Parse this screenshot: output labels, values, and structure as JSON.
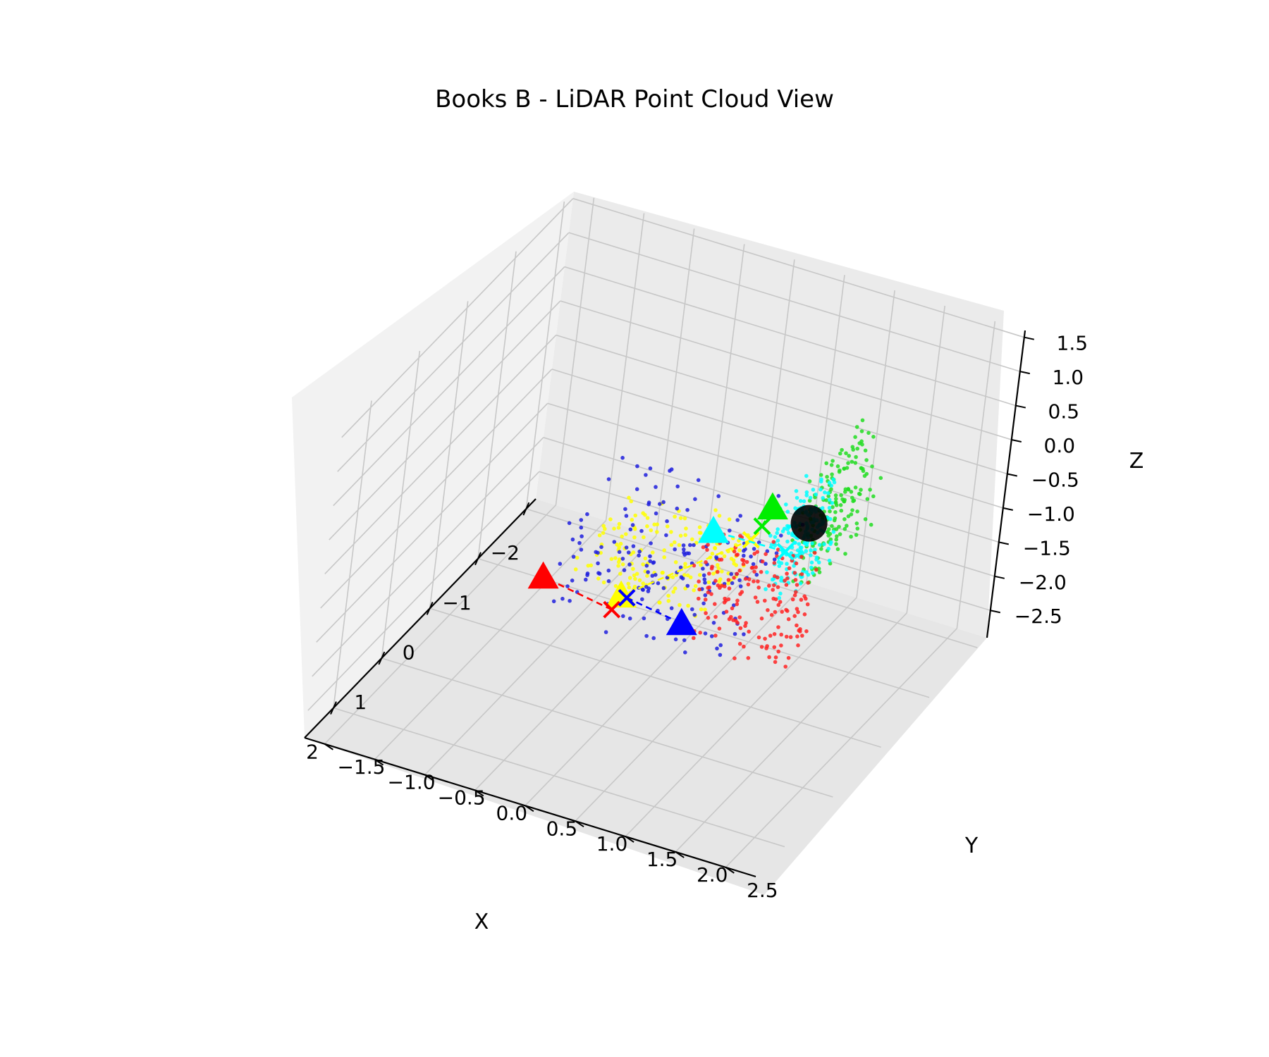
{
  "chart_data": {
    "type": "scatter",
    "title": "Books B - LiDAR Point Cloud View",
    "xlabel": "X",
    "ylabel": "Y",
    "zlabel": "Z",
    "xlim": [
      -2.2,
      2.6
    ],
    "ylim": [
      -1.7,
      2.8
    ],
    "zlim": [
      -2.9,
      1.6
    ],
    "x_ticks": [
      "−2",
      "−1",
      "0",
      "1",
      "2"
    ],
    "y_ticks": [
      "−1.5",
      "−1.0",
      "−0.5",
      "0.0",
      "0.5",
      "1.0",
      "1.5",
      "2.0",
      "2.5"
    ],
    "z_ticks": [
      "−2.5",
      "−2.0",
      "−1.5",
      "−1.0",
      "−0.5",
      "0.0",
      "0.5",
      "1.0",
      "1.5"
    ],
    "grid": true,
    "point_clouds": [
      {
        "color": "#22dd22",
        "x_range": [
          -1.5,
          -0.2
        ],
        "y_range": [
          1.6,
          1.9
        ],
        "z_range": [
          -1.2,
          0.3
        ]
      },
      {
        "color": "#00ffff",
        "x_range": [
          -0.6,
          0.4
        ],
        "y_range": [
          1.6,
          1.9
        ],
        "z_range": [
          -1.0,
          0.3
        ]
      },
      {
        "color": "#ffff00",
        "x_range": [
          -1.1,
          0.3
        ],
        "y_range": [
          -0.3,
          1.0
        ],
        "z_range": [
          -1.8,
          -1.2
        ]
      },
      {
        "color": "#1f1fdd",
        "x_range": [
          -0.6,
          1.1
        ],
        "y_range": [
          -0.2,
          1.6
        ],
        "z_range": [
          -1.6,
          -0.2
        ]
      },
      {
        "color": "#ff2222",
        "x_range": [
          0.5,
          1.1
        ],
        "y_range": [
          1.2,
          2.2
        ],
        "z_range": [
          -1.3,
          0.1
        ]
      }
    ],
    "center_marker": {
      "color": "#000000",
      "x": -0.6,
      "y": 1.6,
      "z": -0.6
    },
    "sensors": [
      {
        "color": "#ffff00",
        "from": [
          -1.0,
          0.9,
          -1.45
        ],
        "to": [
          -1.05,
          -0.3,
          -2.85
        ]
      },
      {
        "color": "#00ffff",
        "from": [
          0.5,
          1.85,
          -0.1
        ],
        "to": [
          1.9,
          1.7,
          1.15
        ]
      },
      {
        "color": "#ff0000",
        "from": [
          0.25,
          0.15,
          -1.9
        ],
        "to": [
          2.1,
          0.2,
          -0.05
        ]
      },
      {
        "color": "#0000ff",
        "from": [
          0.05,
          0.2,
          -1.85
        ],
        "to": [
          0.9,
          1.1,
          -1.2
        ]
      },
      {
        "color": "#00ee00",
        "from": [
          -1.1,
          0.95,
          -1.3
        ],
        "to": [
          -1.05,
          1.05,
          -0.95
        ]
      }
    ]
  }
}
